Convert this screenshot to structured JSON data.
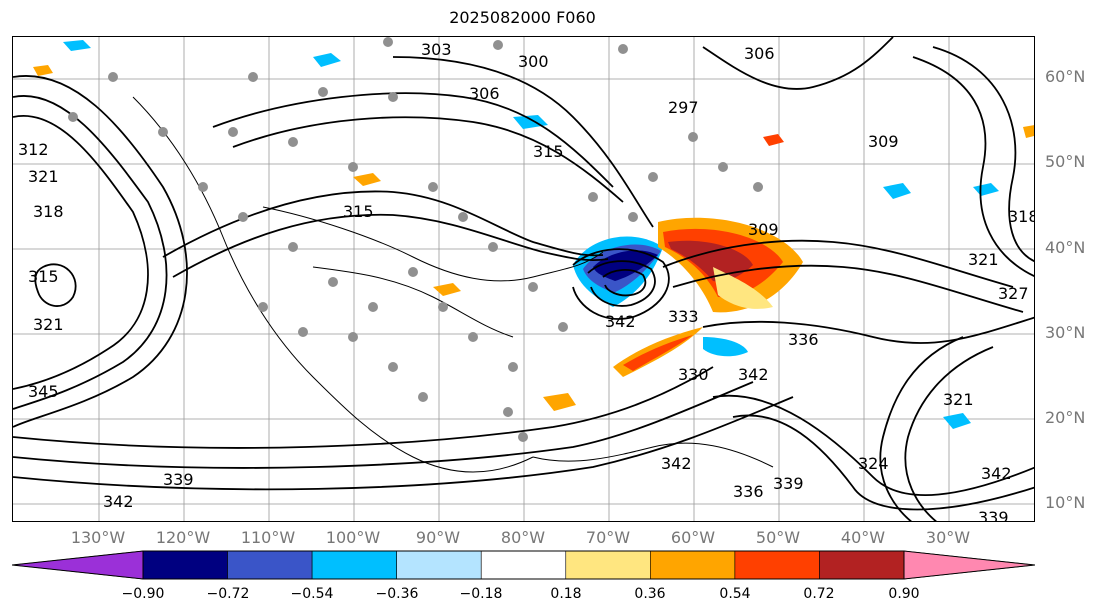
{
  "title": "2025082000 F060",
  "lat_labels": [
    "60°N",
    "50°N",
    "40°N",
    "30°N",
    "20°N",
    "10°N"
  ],
  "lon_labels": [
    "130°W",
    "120°W",
    "110°W",
    "100°W",
    "90°W",
    "80°W",
    "70°W",
    "60°W",
    "50°W",
    "40°W",
    "30°W"
  ],
  "contour_labels": [
    "303",
    "306",
    "300",
    "297",
    "306",
    "309",
    "312",
    "315",
    "315",
    "318",
    "318",
    "321",
    "321",
    "315",
    "309",
    "342",
    "333",
    "342",
    "336",
    "330",
    "342",
    "339",
    "342",
    "339",
    "336",
    "324",
    "342",
    "339",
    "321",
    "321",
    "327",
    "345"
  ],
  "colorbar": {
    "ticks": [
      "−0.90",
      "−0.72",
      "−0.54",
      "−0.36",
      "−0.18",
      "0.18",
      "0.36",
      "0.54",
      "0.72",
      "0.90"
    ],
    "colors": [
      "#9b30d8",
      "#000080",
      "#3a55c8",
      "#00bfff",
      "#b4e4ff",
      "#ffffff",
      "#ffe680",
      "#ffa500",
      "#ff4000",
      "#b22222",
      "#ff88b0"
    ]
  }
}
